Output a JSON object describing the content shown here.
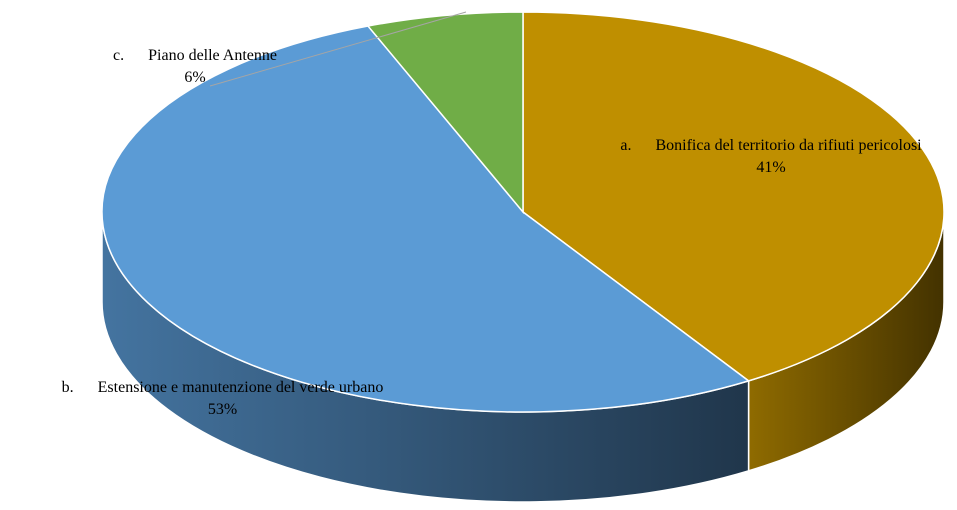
{
  "chart_data": {
    "type": "pie",
    "categories": [
      "a.      Bonifica del territorio da rifiuti pericolosi",
      "b.      Estensione e manutenzione del verde urbano",
      "c.      Piano delle Antenne"
    ],
    "values": [
      41,
      53,
      6
    ],
    "value_labels": [
      "41%",
      "53%",
      "6%"
    ],
    "colors": [
      "#bf8f00",
      "#5b9bd5",
      "#70ad47"
    ]
  }
}
